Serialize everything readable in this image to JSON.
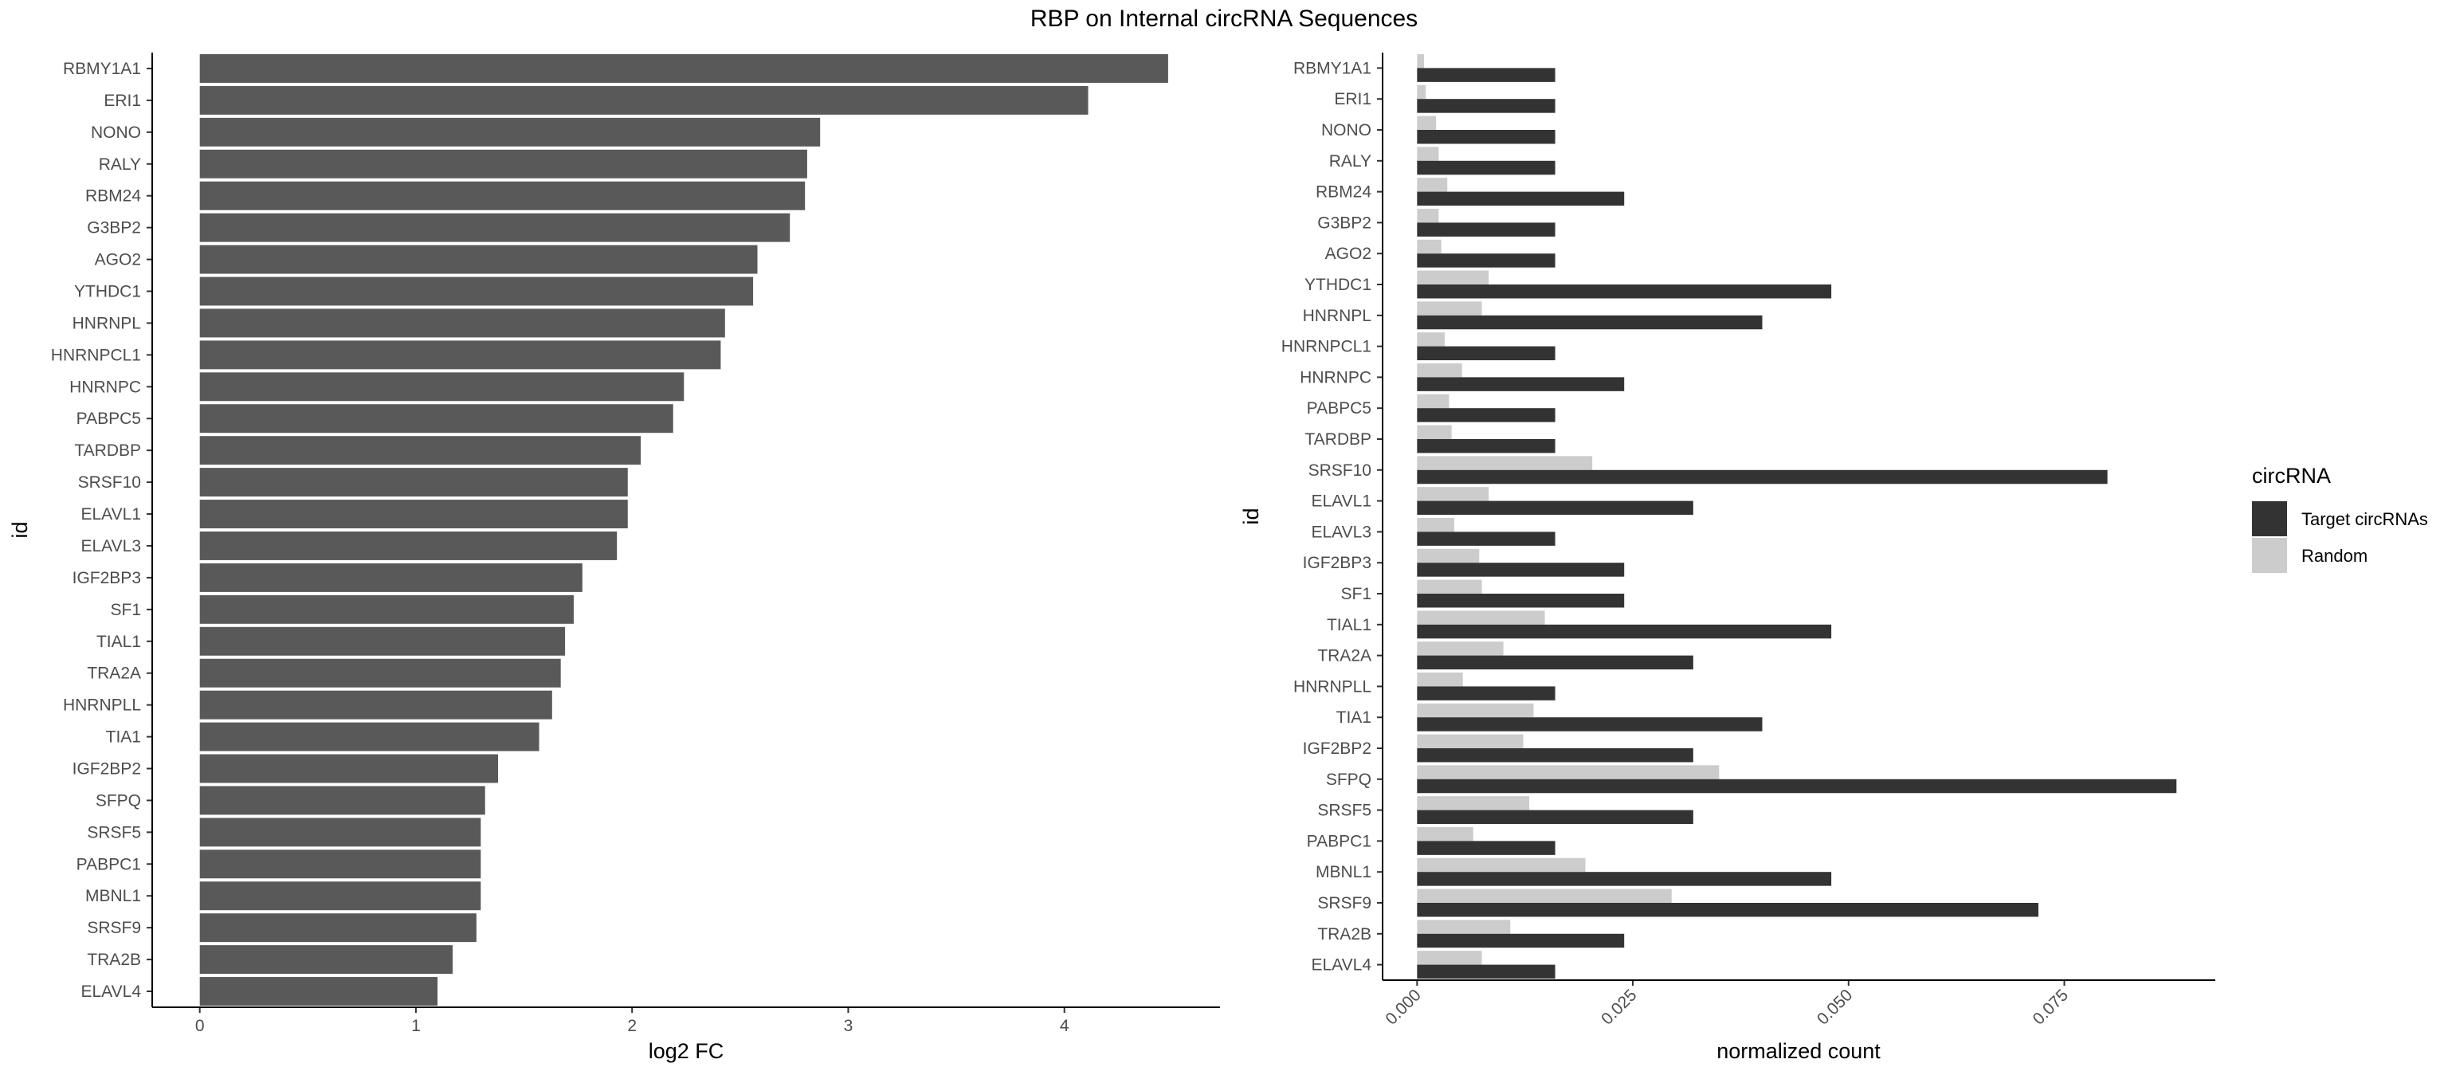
{
  "title": "RBP on Internal circRNA Sequences",
  "chart_data": [
    {
      "type": "bar",
      "orientation": "horizontal",
      "title": "",
      "xlabel": "log2 FC",
      "ylabel": "id",
      "xlim": [
        -0.22,
        4.72
      ],
      "xticks": [
        0,
        1,
        2,
        3,
        4
      ],
      "color": "#595959",
      "grid": false,
      "categories": [
        "RBMY1A1",
        "ERI1",
        "NONO",
        "RALY",
        "RBM24",
        "G3BP2",
        "AGO2",
        "YTHDC1",
        "HNRNPL",
        "HNRNPCL1",
        "HNRNPC",
        "PABPC5",
        "TARDBP",
        "SRSF10",
        "ELAVL1",
        "ELAVL3",
        "IGF2BP3",
        "SF1",
        "TIAL1",
        "TRA2A",
        "HNRNPLL",
        "TIA1",
        "IGF2BP2",
        "SFPQ",
        "SRSF5",
        "PABPC1",
        "MBNL1",
        "SRSF9",
        "TRA2B",
        "ELAVL4"
      ],
      "values": [
        4.48,
        4.11,
        2.87,
        2.81,
        2.8,
        2.73,
        2.58,
        2.56,
        2.43,
        2.41,
        2.24,
        2.19,
        2.04,
        1.98,
        1.98,
        1.93,
        1.77,
        1.73,
        1.69,
        1.67,
        1.63,
        1.57,
        1.38,
        1.32,
        1.3,
        1.3,
        1.3,
        1.28,
        1.17,
        1.1
      ]
    },
    {
      "type": "bar",
      "orientation": "horizontal",
      "grouped": true,
      "title": "",
      "xlabel": "normalized count",
      "ylabel": "id",
      "xlim": [
        -0.004,
        0.0925
      ],
      "xticks": [
        0.0,
        0.025,
        0.05,
        0.075
      ],
      "xtick_labels": [
        "0.000",
        "0.025",
        "0.050",
        "0.075"
      ],
      "xtick_rotation": -45,
      "grid": false,
      "legend": {
        "title": "circRNA",
        "position": "right"
      },
      "categories": [
        "RBMY1A1",
        "ERI1",
        "NONO",
        "RALY",
        "RBM24",
        "G3BP2",
        "AGO2",
        "YTHDC1",
        "HNRNPL",
        "HNRNPCL1",
        "HNRNPC",
        "PABPC5",
        "TARDBP",
        "SRSF10",
        "ELAVL1",
        "ELAVL3",
        "IGF2BP3",
        "SF1",
        "TIAL1",
        "TRA2A",
        "HNRNPLL",
        "TIA1",
        "IGF2BP2",
        "SFPQ",
        "SRSF5",
        "PABPC1",
        "MBNL1",
        "SRSF9",
        "TRA2B",
        "ELAVL4"
      ],
      "series": [
        {
          "name": "Target circRNAs",
          "color": "#333333",
          "values": [
            0.016,
            0.016,
            0.016,
            0.016,
            0.024,
            0.016,
            0.016,
            0.048,
            0.04,
            0.016,
            0.024,
            0.016,
            0.016,
            0.08,
            0.032,
            0.016,
            0.024,
            0.024,
            0.048,
            0.032,
            0.016,
            0.04,
            0.032,
            0.088,
            0.032,
            0.016,
            0.048,
            0.072,
            0.024,
            0.016
          ]
        },
        {
          "name": "Random",
          "color": "#cccccc",
          "values": [
            0.0008,
            0.001,
            0.0022,
            0.0025,
            0.0035,
            0.0025,
            0.0028,
            0.0083,
            0.0075,
            0.0032,
            0.0052,
            0.0037,
            0.004,
            0.0203,
            0.0083,
            0.0043,
            0.0072,
            0.0075,
            0.0148,
            0.01,
            0.0053,
            0.0135,
            0.0123,
            0.035,
            0.013,
            0.0065,
            0.0195,
            0.0295,
            0.0108,
            0.0075
          ]
        }
      ]
    }
  ]
}
